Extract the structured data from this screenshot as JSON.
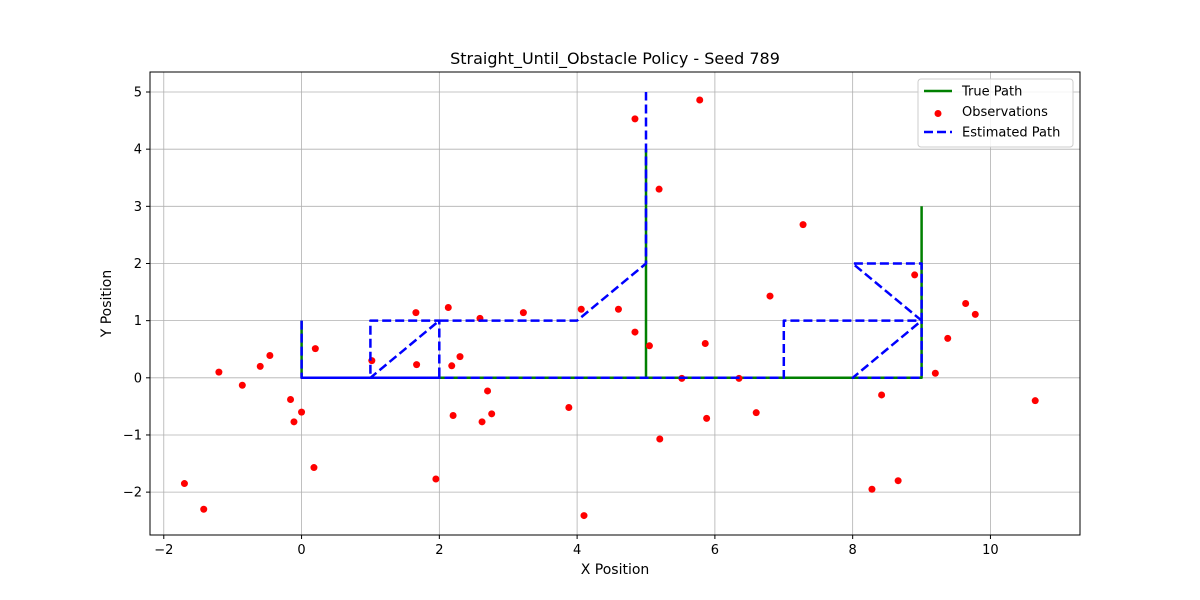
{
  "chart_data": {
    "type": "line",
    "title": "Straight_Until_Obstacle Policy - Seed 789",
    "xlabel": "X Position",
    "ylabel": "Y Position",
    "xlim": [
      -2.2,
      11.3
    ],
    "ylim": [
      -2.75,
      5.35
    ],
    "xticks": [
      -2,
      0,
      2,
      4,
      6,
      8,
      10
    ],
    "xtick_labels": [
      "−2",
      "0",
      "2",
      "4",
      "6",
      "8",
      "10"
    ],
    "yticks": [
      -2,
      -1,
      0,
      1,
      2,
      3,
      4,
      5
    ],
    "ytick_labels": [
      "−2",
      "−1",
      "0",
      "1",
      "2",
      "3",
      "4",
      "5"
    ],
    "grid": true,
    "legend_position": "top-right",
    "series": [
      {
        "name": "True Path",
        "kind": "line",
        "color": "#008000",
        "style": "solid",
        "segments": [
          [
            [
              0,
              1
            ],
            [
              0,
              0
            ],
            [
              5,
              0
            ],
            [
              5,
              4
            ]
          ],
          [
            [
              0,
              0
            ],
            [
              9,
              0
            ],
            [
              9,
              3
            ]
          ]
        ]
      },
      {
        "name": "Observations",
        "kind": "scatter",
        "color": "#ff0000",
        "points": [
          [
            -1.7,
            -1.85
          ],
          [
            -1.42,
            -2.3
          ],
          [
            -1.2,
            0.1
          ],
          [
            -0.86,
            -0.13
          ],
          [
            -0.6,
            0.2
          ],
          [
            -0.46,
            0.39
          ],
          [
            -0.16,
            -0.38
          ],
          [
            -0.11,
            -0.77
          ],
          [
            0.0,
            -0.6
          ],
          [
            0.18,
            -1.57
          ],
          [
            0.2,
            0.51
          ],
          [
            1.02,
            0.3
          ],
          [
            1.66,
            1.14
          ],
          [
            1.67,
            0.23
          ],
          [
            1.95,
            -1.77
          ],
          [
            2.13,
            1.23
          ],
          [
            2.18,
            0.21
          ],
          [
            2.2,
            -0.66
          ],
          [
            2.3,
            0.37
          ],
          [
            2.59,
            1.04
          ],
          [
            2.62,
            -0.77
          ],
          [
            2.7,
            -0.23
          ],
          [
            2.76,
            -0.63
          ],
          [
            3.22,
            1.14
          ],
          [
            3.88,
            -0.52
          ],
          [
            4.06,
            1.2
          ],
          [
            4.1,
            -2.41
          ],
          [
            4.6,
            1.2
          ],
          [
            4.84,
            0.8
          ],
          [
            4.84,
            4.53
          ],
          [
            5.05,
            0.56
          ],
          [
            5.19,
            3.3
          ],
          [
            5.2,
            -1.07
          ],
          [
            5.52,
            -0.01
          ],
          [
            5.78,
            4.86
          ],
          [
            5.86,
            0.6
          ],
          [
            5.88,
            -0.71
          ],
          [
            6.35,
            -0.01
          ],
          [
            6.6,
            -0.61
          ],
          [
            6.8,
            1.43
          ],
          [
            7.28,
            2.68
          ],
          [
            8.28,
            -1.95
          ],
          [
            8.42,
            -0.3
          ],
          [
            8.66,
            -1.8
          ],
          [
            8.9,
            1.8
          ],
          [
            9.2,
            0.08
          ],
          [
            9.38,
            0.69
          ],
          [
            9.64,
            1.3
          ],
          [
            9.78,
            1.11
          ],
          [
            10.65,
            -0.4
          ]
        ]
      },
      {
        "name": "Estimated Path",
        "kind": "line",
        "color": "#0000ff",
        "style": "dashed",
        "segments": [
          [
            [
              0,
              1
            ],
            [
              0,
              0
            ],
            [
              1,
              0
            ],
            [
              1,
              1
            ],
            [
              2,
              1
            ],
            [
              2,
              0
            ],
            [
              1,
              0
            ],
            [
              2,
              1
            ],
            [
              4,
              1
            ],
            [
              5,
              2
            ],
            [
              5,
              5
            ]
          ],
          [
            [
              0,
              0
            ],
            [
              7,
              0
            ],
            [
              7,
              1
            ],
            [
              9,
              1
            ],
            [
              9,
              2
            ],
            [
              8,
              2
            ],
            [
              9,
              1
            ],
            [
              8,
              0
            ],
            [
              9,
              0
            ],
            [
              9,
              1
            ]
          ]
        ]
      }
    ]
  }
}
